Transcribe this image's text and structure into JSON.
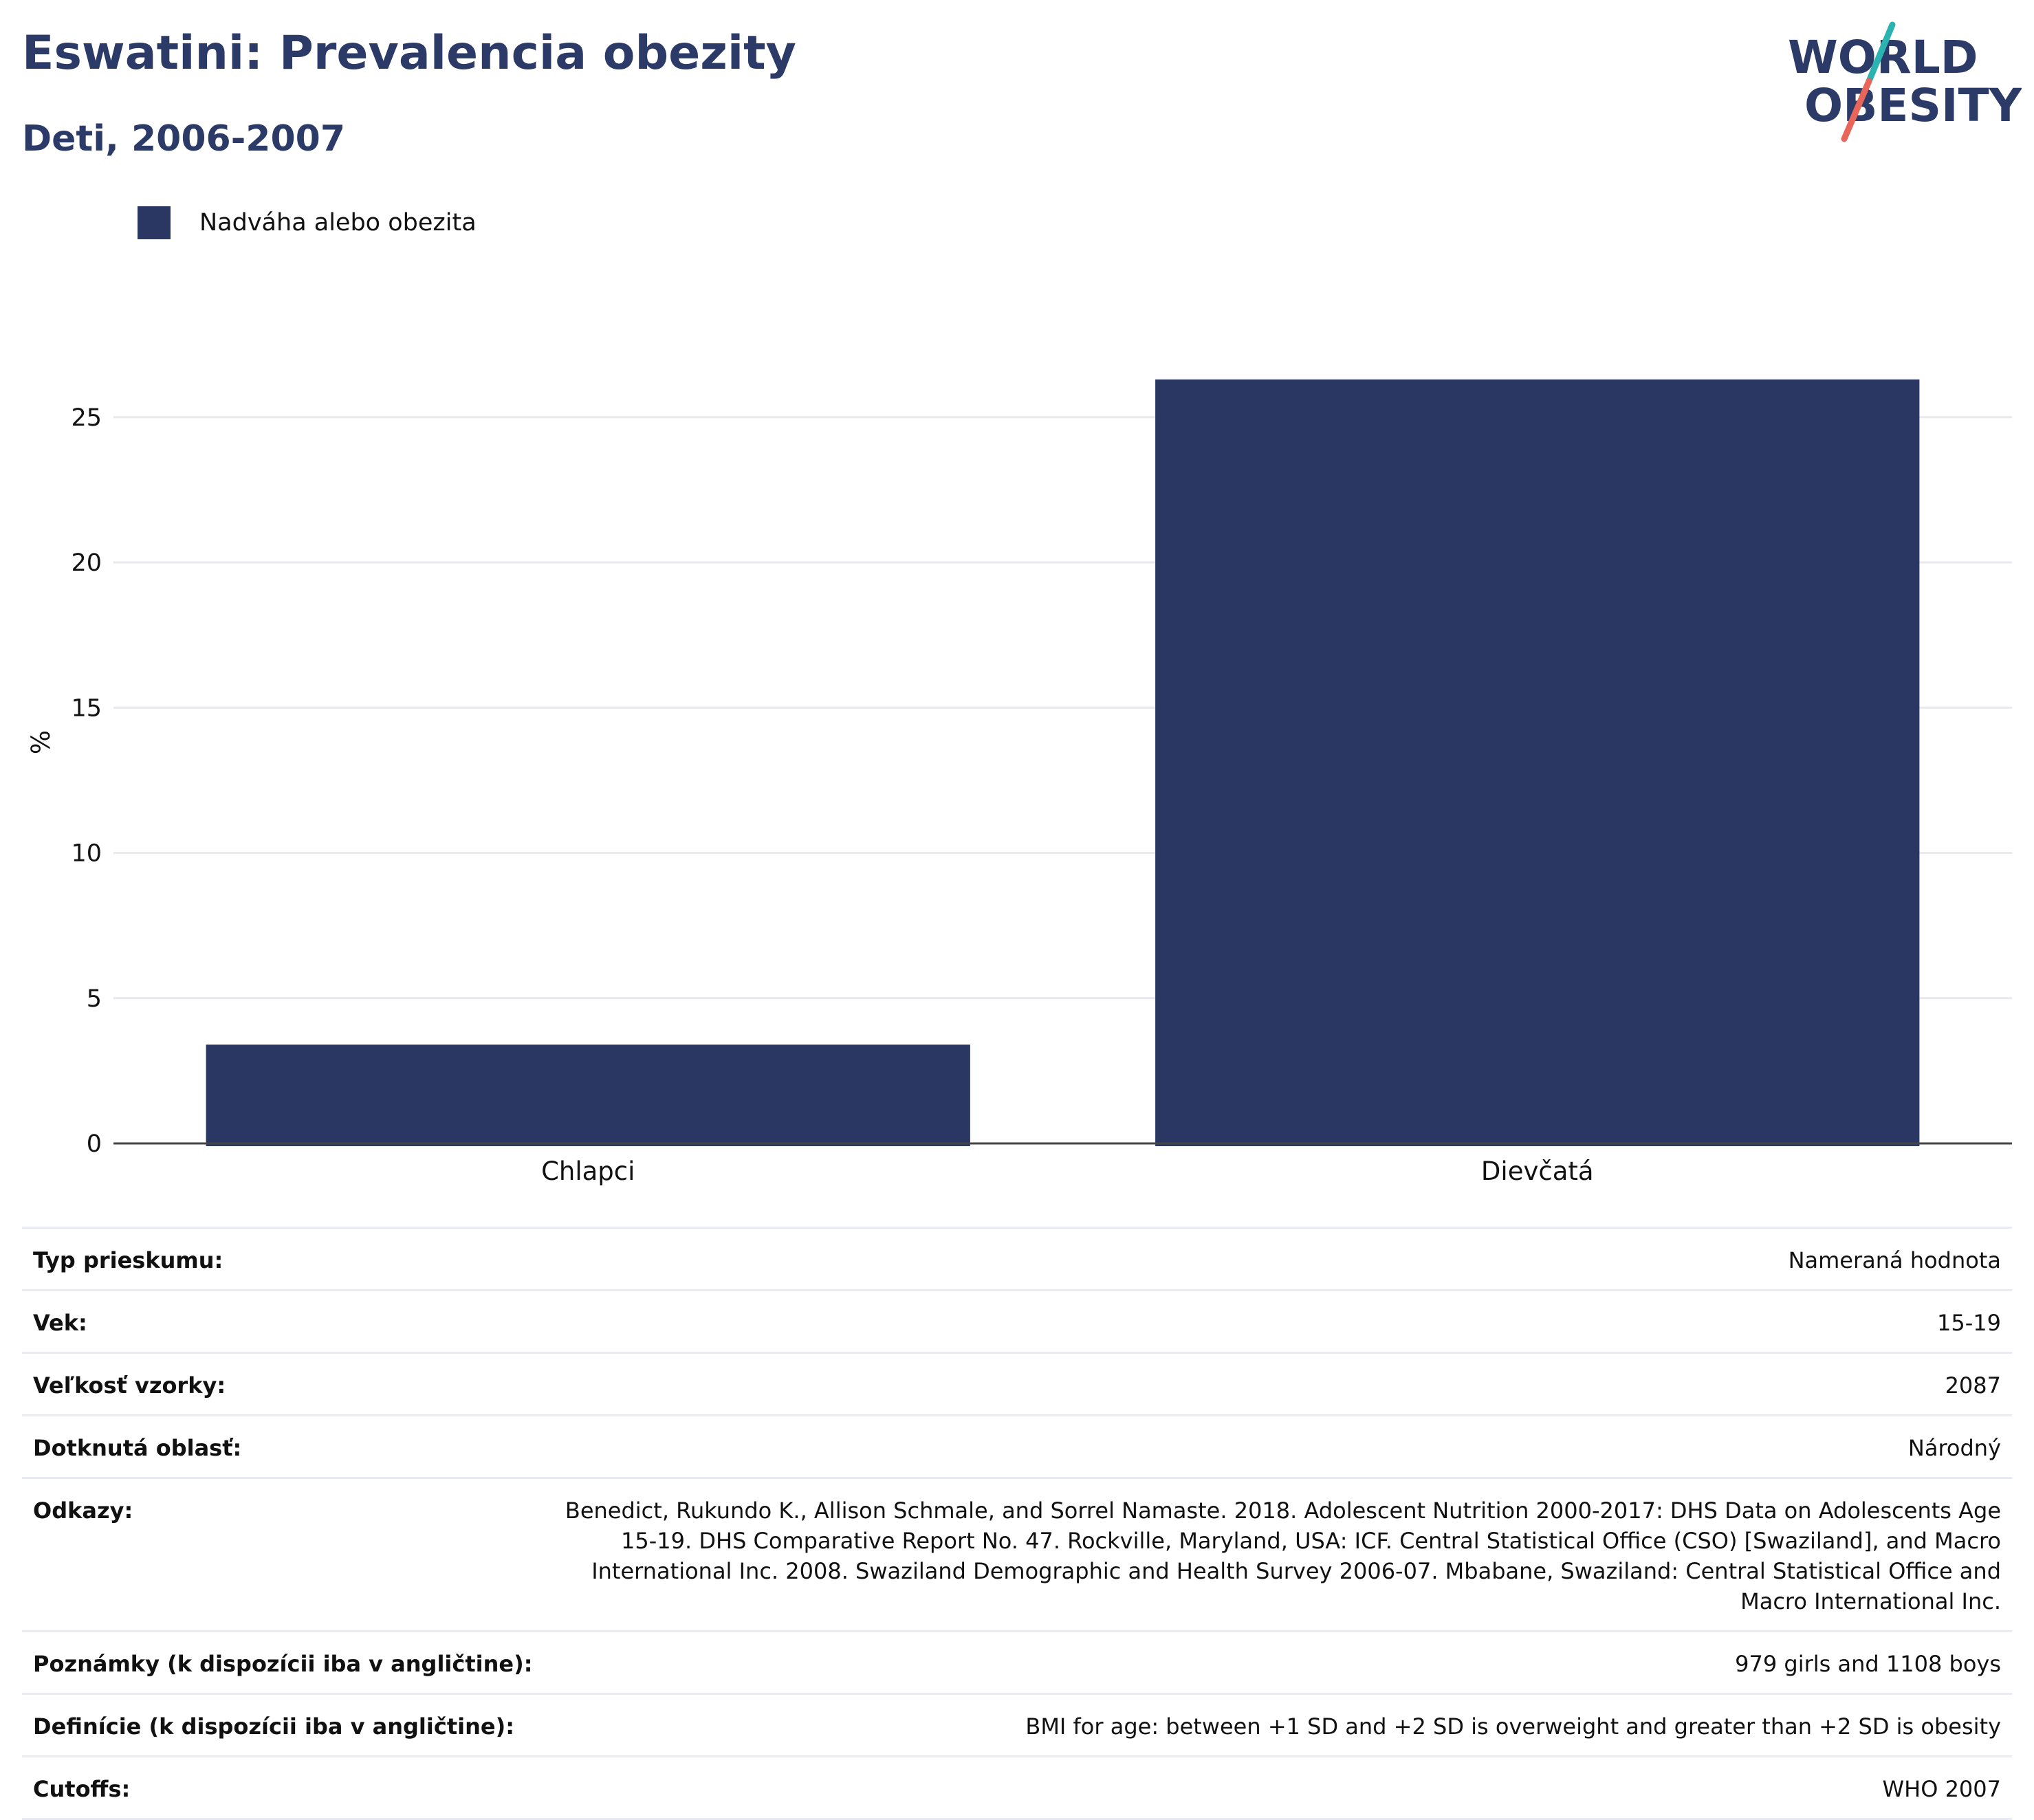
{
  "header": {
    "title": "Eswatini: Prevalencia obezity",
    "subtitle": "Deti, 2006-2007"
  },
  "logo": {
    "line1": "WORLD",
    "line2": "OBESITY",
    "colors": {
      "text": "#2b3a67",
      "slash_top": "#2bb3b1",
      "slash_bottom": "#e8655a"
    }
  },
  "chart_data": {
    "type": "bar",
    "categories": [
      "Chlapci",
      "Dievčatá"
    ],
    "series": [
      {
        "name": "Nadváha alebo obezita",
        "values": [
          3.4,
          26.3
        ],
        "color": "#2b3763"
      }
    ],
    "xlabel": "",
    "ylabel": "%",
    "ylim": [
      0,
      28
    ],
    "yticks": [
      0,
      5,
      10,
      15,
      20,
      25
    ],
    "grid": true,
    "legend_position": "top-left"
  },
  "info": [
    {
      "label": "Typ prieskumu:",
      "value": "Nameraná hodnota"
    },
    {
      "label": "Vek:",
      "value": "15-19"
    },
    {
      "label": "Veľkosť vzorky:",
      "value": "2087"
    },
    {
      "label": "Dotknutá oblasť:",
      "value": "Národný"
    },
    {
      "label": "Odkazy:",
      "value": "Benedict, Rukundo K., Allison Schmale, and Sorrel Namaste. 2018. Adolescent Nutrition 2000-2017: DHS Data on Adolescents Age 15-19. DHS Comparative Report No. 47. Rockville, Maryland, USA: ICF. Central Statistical Office (CSO) [Swaziland], and Macro International Inc. 2008. Swaziland Demographic and Health Survey 2006-07. Mbabane, Swaziland: Central Statistical Office and Macro International Inc."
    },
    {
      "label": "Poznámky (k dispozícii iba v angličtine):",
      "value": "979 girls and 1108 boys"
    },
    {
      "label": "Definície (k dispozícii iba v angličtine):",
      "value": "BMI for age: between +1 SD and +2 SD is overweight and greater than +2 SD is obesity"
    },
    {
      "label": "Cutoffs:",
      "value": "WHO 2007"
    }
  ]
}
